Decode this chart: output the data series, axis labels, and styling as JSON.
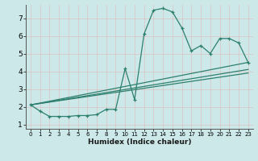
{
  "bg_color": "#cce8e8",
  "grid_color": "#c0d8d8",
  "line_color": "#2d7f6f",
  "marker": "+",
  "xlabel": "Humidex (Indice chaleur)",
  "ylim": [
    0.75,
    7.75
  ],
  "xlim": [
    -0.5,
    23.5
  ],
  "yticks": [
    1,
    2,
    3,
    4,
    5,
    6,
    7
  ],
  "xticks": [
    0,
    1,
    2,
    3,
    4,
    5,
    6,
    7,
    8,
    9,
    10,
    11,
    12,
    13,
    14,
    15,
    16,
    17,
    18,
    19,
    20,
    21,
    22,
    23
  ],
  "series": [
    [
      0,
      2.1
    ],
    [
      1,
      1.75
    ],
    [
      2,
      1.45
    ],
    [
      3,
      1.45
    ],
    [
      4,
      1.45
    ],
    [
      5,
      1.5
    ],
    [
      6,
      1.5
    ],
    [
      7,
      1.55
    ],
    [
      8,
      1.85
    ],
    [
      9,
      1.85
    ],
    [
      10,
      4.15
    ],
    [
      11,
      2.4
    ],
    [
      12,
      6.1
    ],
    [
      13,
      7.45
    ],
    [
      14,
      7.55
    ],
    [
      15,
      7.35
    ],
    [
      16,
      6.45
    ],
    [
      17,
      5.15
    ],
    [
      18,
      5.45
    ],
    [
      19,
      5.0
    ],
    [
      20,
      5.85
    ],
    [
      21,
      5.85
    ],
    [
      22,
      5.6
    ],
    [
      23,
      4.5
    ]
  ],
  "series2": [
    [
      0,
      2.1
    ],
    [
      23,
      4.5
    ]
  ],
  "series3": [
    [
      0,
      2.1
    ],
    [
      23,
      4.1
    ]
  ],
  "series4": [
    [
      0,
      2.1
    ],
    [
      23,
      3.9
    ]
  ]
}
